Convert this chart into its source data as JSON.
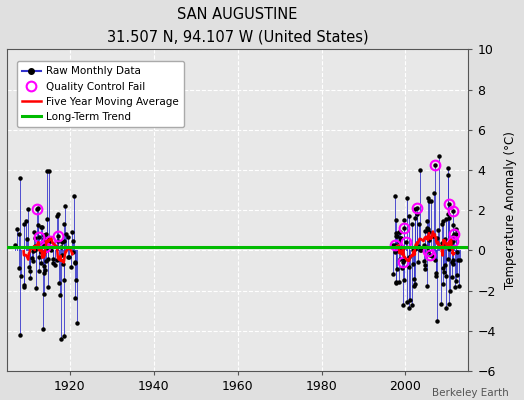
{
  "title": "SAN AUGUSTINE",
  "subtitle": "31.507 N, 94.107 W (United States)",
  "ylabel": "Temperature Anomaly (°C)",
  "credit": "Berkeley Earth",
  "ylim": [
    -6,
    10
  ],
  "yticks": [
    -6,
    -4,
    -2,
    0,
    2,
    4,
    6,
    8,
    10
  ],
  "xlim": [
    1905,
    2015
  ],
  "xticks": [
    1920,
    1940,
    1960,
    1980,
    2000
  ],
  "bg_color": "#e0e0e0",
  "plot_bg_color": "#e8e8e8",
  "grid_color": "#ffffff",
  "moving_avg_color": "#ff0000",
  "trend_color": "#00bb00",
  "data_color": "#3333cc",
  "marker_color": "#000000",
  "qc_fail_color": "#ff00ff",
  "long_term_trend_y": 0.15,
  "figsize": [
    5.24,
    4.0
  ],
  "dpi": 100
}
